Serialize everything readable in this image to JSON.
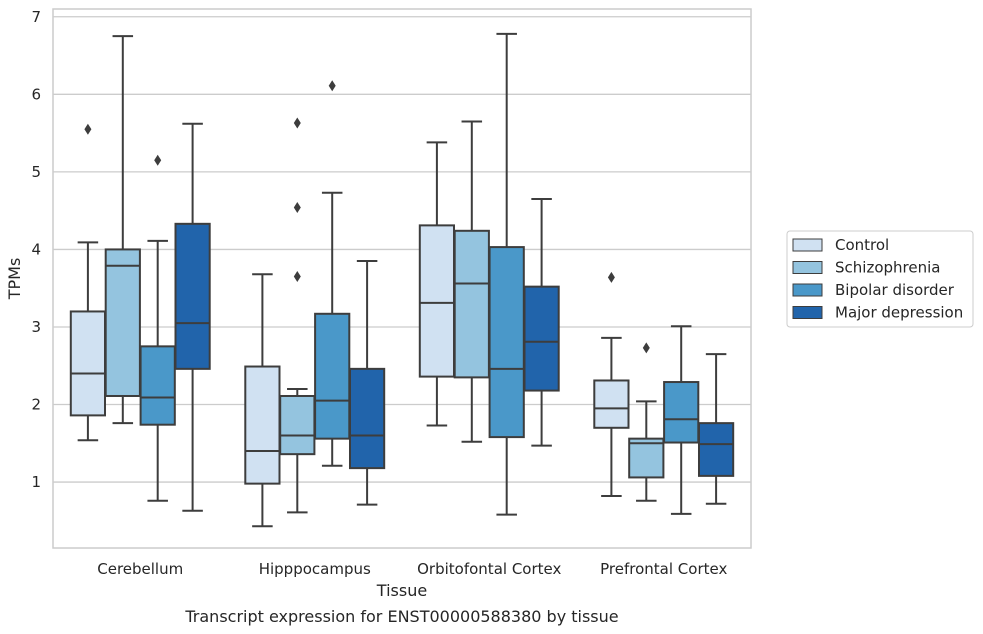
{
  "chart_data": {
    "type": "box",
    "xlabel": "Tissue",
    "ylabel": "TPMs",
    "caption": "Transcript expression for ENST00000588380 by tissue",
    "ylim": [
      0.15,
      7.1
    ],
    "yticks": [
      1,
      2,
      3,
      4,
      5,
      6,
      7
    ],
    "grid": "horizontal",
    "legend_position": "right",
    "categories": [
      "Cerebellum",
      "Hipppocampus",
      "Orbitofontal Cortex",
      "Prefrontal Cortex"
    ],
    "series": [
      {
        "name": "Control",
        "color": "#d0e1f2",
        "boxes": [
          {
            "whisker_low": 1.54,
            "q1": 1.86,
            "median": 2.4,
            "q3": 3.2,
            "whisker_high": 4.09,
            "outliers": [
              5.55
            ]
          },
          {
            "whisker_low": 0.43,
            "q1": 0.98,
            "median": 1.4,
            "q3": 2.49,
            "whisker_high": 3.68,
            "outliers": []
          },
          {
            "whisker_low": 1.73,
            "q1": 2.36,
            "median": 3.31,
            "q3": 4.31,
            "whisker_high": 5.38,
            "outliers": []
          },
          {
            "whisker_low": 0.82,
            "q1": 1.7,
            "median": 1.95,
            "q3": 2.31,
            "whisker_high": 2.86,
            "outliers": [
              3.64
            ]
          }
        ]
      },
      {
        "name": "Schizophrenia",
        "color": "#94c4df",
        "boxes": [
          {
            "whisker_low": 1.76,
            "q1": 2.11,
            "median": 3.79,
            "q3": 4.0,
            "whisker_high": 6.75,
            "outliers": []
          },
          {
            "whisker_low": 0.61,
            "q1": 1.36,
            "median": 1.6,
            "q3": 2.11,
            "whisker_high": 2.2,
            "outliers": [
              3.65,
              4.54,
              5.63
            ]
          },
          {
            "whisker_low": 1.52,
            "q1": 2.35,
            "median": 3.56,
            "q3": 4.24,
            "whisker_high": 5.65,
            "outliers": []
          },
          {
            "whisker_low": 0.76,
            "q1": 1.06,
            "median": 1.5,
            "q3": 1.56,
            "whisker_high": 2.04,
            "outliers": [
              2.73
            ]
          }
        ]
      },
      {
        "name": "Bipolar disorder",
        "color": "#4a98c9",
        "boxes": [
          {
            "whisker_low": 0.76,
            "q1": 1.74,
            "median": 2.09,
            "q3": 2.75,
            "whisker_high": 4.11,
            "outliers": [
              5.15
            ]
          },
          {
            "whisker_low": 1.21,
            "q1": 1.56,
            "median": 2.05,
            "q3": 3.17,
            "whisker_high": 4.73,
            "outliers": [
              6.11
            ]
          },
          {
            "whisker_low": 0.58,
            "q1": 1.58,
            "median": 2.46,
            "q3": 4.03,
            "whisker_high": 6.78,
            "outliers": []
          },
          {
            "whisker_low": 0.59,
            "q1": 1.51,
            "median": 1.81,
            "q3": 2.29,
            "whisker_high": 3.01,
            "outliers": []
          }
        ]
      },
      {
        "name": "Major depression",
        "color": "#2164ab",
        "boxes": [
          {
            "whisker_low": 0.63,
            "q1": 2.46,
            "median": 3.05,
            "q3": 4.33,
            "whisker_high": 5.62,
            "outliers": []
          },
          {
            "whisker_low": 0.71,
            "q1": 1.18,
            "median": 1.6,
            "q3": 2.46,
            "whisker_high": 3.85,
            "outliers": []
          },
          {
            "whisker_low": 1.47,
            "q1": 2.18,
            "median": 2.81,
            "q3": 3.52,
            "whisker_high": 4.65,
            "outliers": []
          },
          {
            "whisker_low": 0.72,
            "q1": 1.08,
            "median": 1.49,
            "q3": 1.76,
            "whisker_high": 2.65,
            "outliers": []
          }
        ]
      }
    ]
  }
}
